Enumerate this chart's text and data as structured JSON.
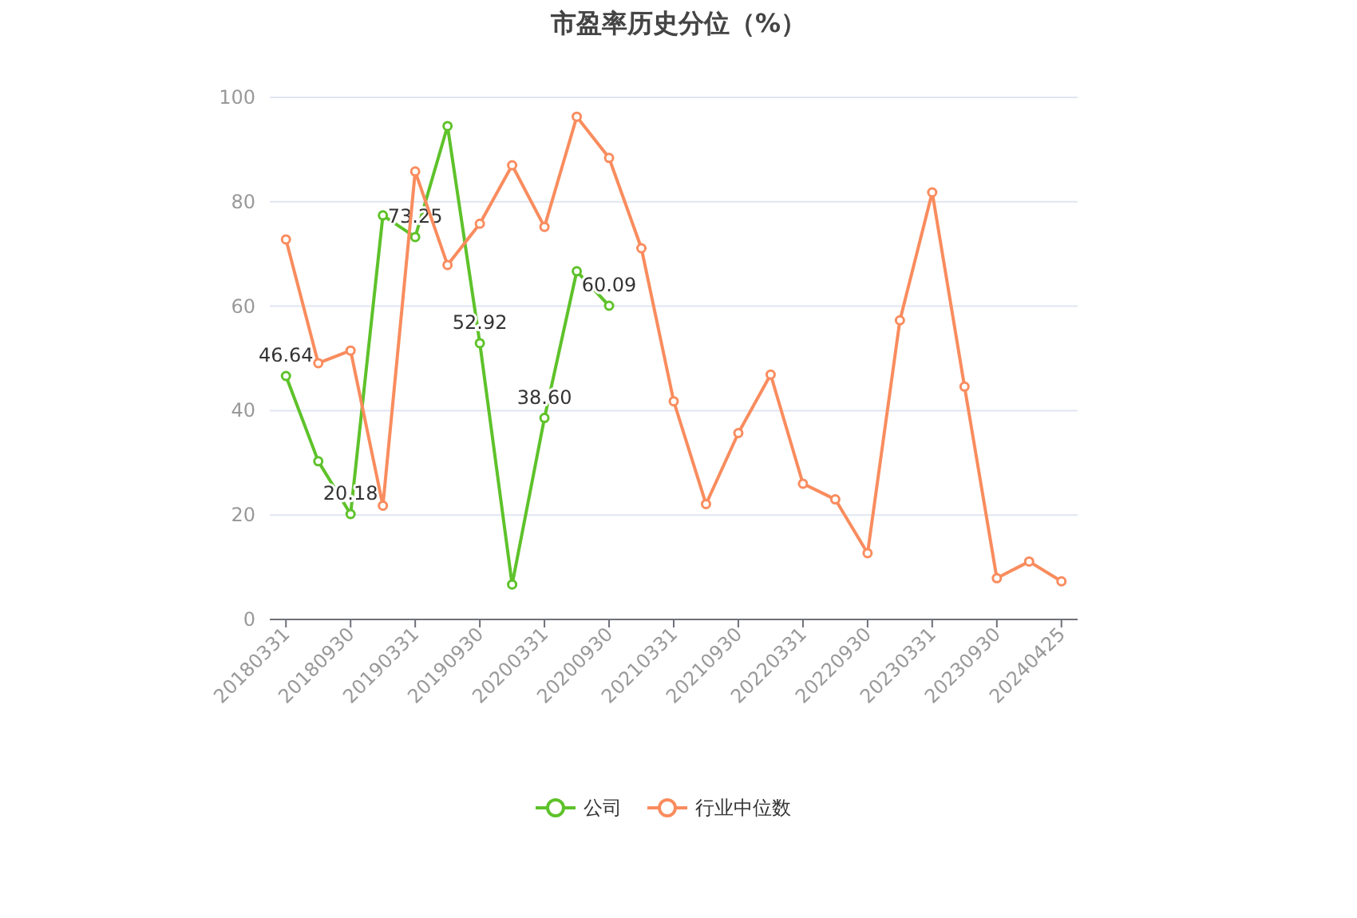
{
  "chart_data": {
    "type": "line",
    "title": "市盈率历史分位（%）",
    "categories": [
      "20180331",
      null,
      "20180930",
      null,
      "20190331",
      null,
      "20190930",
      null,
      "20200331",
      null,
      "20200930",
      null,
      "20210331",
      null,
      "20210930",
      null,
      "20220331",
      null,
      "20220930",
      null,
      "20230331",
      null,
      "20230930",
      null,
      "20240425"
    ],
    "series": [
      {
        "name": "公司",
        "color": "#5ec22a",
        "values": [
          46.64,
          30.3,
          20.18,
          77.4,
          73.25,
          94.5,
          52.92,
          6.7,
          38.6,
          66.7,
          60.09,
          null,
          null,
          null,
          null,
          null,
          null,
          null,
          null,
          null,
          null,
          null,
          null,
          null,
          null
        ],
        "value_labels": [
          "46.64",
          null,
          "20.18",
          null,
          "73.25",
          null,
          "52.92",
          null,
          "38.60",
          null,
          "60.09",
          null,
          null,
          null,
          null,
          null,
          null,
          null,
          null,
          null,
          null,
          null,
          null,
          null,
          null
        ]
      },
      {
        "name": "行业中位数",
        "color": "#f98c5e",
        "values": [
          72.8,
          49.1,
          51.5,
          21.8,
          85.8,
          67.9,
          75.8,
          87.0,
          75.2,
          96.3,
          88.4,
          71.1,
          41.8,
          22.1,
          35.7,
          46.9,
          26.0,
          23.0,
          12.7,
          57.3,
          81.8,
          44.6,
          7.9,
          11.1,
          7.3
        ]
      }
    ],
    "ylim": [
      0,
      100
    ],
    "yticks": [
      0,
      20,
      40,
      60,
      80,
      100
    ],
    "grid": "y",
    "legend": "bottom",
    "marker": "circle"
  }
}
